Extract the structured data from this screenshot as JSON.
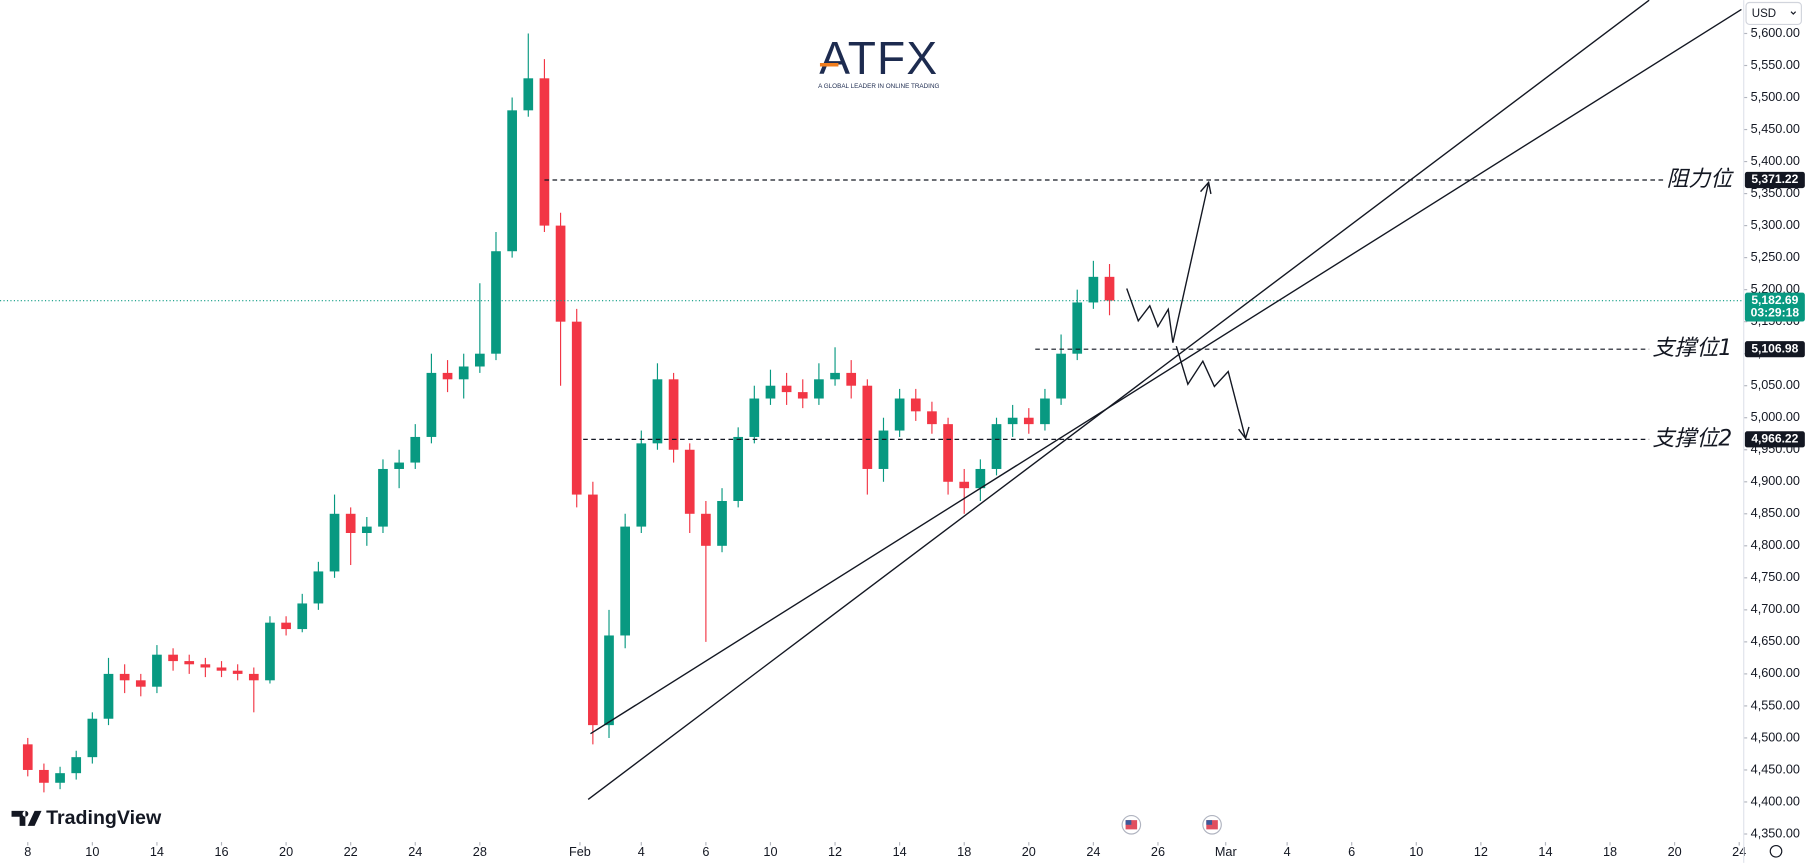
{
  "chart_data": {
    "type": "candlestick",
    "currency": "USD",
    "colors": {
      "up": "#089981",
      "down": "#f23645"
    },
    "x": [
      0,
      0.5,
      1,
      1.5,
      2,
      2.5,
      3,
      3.5,
      4,
      4.5,
      5,
      5.5,
      6,
      6.5,
      7,
      7.5,
      8,
      8.5,
      9,
      9.5,
      10,
      10.5,
      11,
      11.5,
      12,
      12.5,
      13,
      13.5,
      14,
      14.5,
      15,
      15.5,
      16,
      16.5,
      17,
      17.5,
      18,
      18.5,
      19,
      19.5,
      20,
      20.5,
      21,
      21.5,
      22,
      22.5,
      23,
      23.5,
      24,
      24.5,
      25,
      25.5,
      26,
      26.5,
      27,
      27.5,
      28,
      28.5,
      29,
      29.5,
      30,
      30.5,
      31,
      31.5,
      32,
      32.5,
      33,
      33.5
    ],
    "open": [
      4490,
      4450,
      4430,
      4445,
      4470,
      4530,
      4600,
      4590,
      4580,
      4630,
      4620,
      4615,
      4610,
      4605,
      4600,
      4590,
      4680,
      4670,
      4710,
      4760,
      4850,
      4820,
      4830,
      4920,
      4930,
      4970,
      5070,
      5060,
      5080,
      5100,
      5260,
      5480,
      5530,
      5300,
      5150,
      4880,
      4520,
      4660,
      4830,
      4960,
      5060,
      4950,
      4850,
      4800,
      4870,
      4970,
      5030,
      5050,
      5040,
      5030,
      5060,
      5070,
      5050,
      4920,
      4980,
      5030,
      5010,
      4990,
      4900,
      4890,
      4920,
      4990,
      5000,
      4990,
      5030,
      5100,
      5180,
      5220
    ],
    "high": [
      4500,
      4460,
      4455,
      4480,
      4540,
      4625,
      4615,
      4600,
      4645,
      4640,
      4630,
      4625,
      4620,
      4615,
      4610,
      4690,
      4690,
      4725,
      4775,
      4880,
      4860,
      4845,
      4935,
      4950,
      4990,
      5100,
      5090,
      5100,
      5210,
      5290,
      5500,
      5600,
      5560,
      5320,
      5170,
      4900,
      4700,
      4850,
      4980,
      5085,
      5070,
      4960,
      4870,
      4890,
      4985,
      5050,
      5075,
      5070,
      5060,
      5085,
      5110,
      5090,
      5060,
      5000,
      5045,
      5045,
      5025,
      5000,
      4920,
      4935,
      5000,
      5020,
      5015,
      5045,
      5130,
      5200,
      5245,
      5240
    ],
    "low": [
      4440,
      4415,
      4420,
      4435,
      4460,
      4520,
      4570,
      4565,
      4570,
      4605,
      4600,
      4595,
      4595,
      4590,
      4540,
      4585,
      4660,
      4665,
      4700,
      4750,
      4770,
      4800,
      4820,
      4890,
      4920,
      4960,
      5040,
      5030,
      5070,
      5090,
      5250,
      5470,
      5290,
      5050,
      4860,
      4490,
      4500,
      4640,
      4820,
      4950,
      4930,
      4820,
      4650,
      4790,
      4860,
      4960,
      5020,
      5020,
      5015,
      5020,
      5050,
      5030,
      4880,
      4900,
      4970,
      4995,
      4975,
      4880,
      4850,
      4870,
      4910,
      4970,
      4975,
      4980,
      5020,
      5090,
      5170,
      5160
    ],
    "close": [
      4450,
      4430,
      4445,
      4470,
      4530,
      4600,
      4590,
      4580,
      4630,
      4620,
      4615,
      4610,
      4605,
      4600,
      4590,
      4680,
      4670,
      4710,
      4760,
      4850,
      4820,
      4830,
      4920,
      4930,
      4970,
      5070,
      5060,
      5080,
      5100,
      5260,
      5480,
      5530,
      5300,
      5150,
      4880,
      4520,
      4660,
      4830,
      4960,
      5060,
      4950,
      4850,
      4800,
      4870,
      4970,
      5030,
      5050,
      5040,
      5030,
      5060,
      5070,
      5050,
      4920,
      4980,
      5030,
      5010,
      4990,
      4900,
      4890,
      4920,
      4990,
      5000,
      4990,
      5030,
      5100,
      5180,
      5220,
      5183
    ],
    "xlim": [
      -0.86,
      53.14
    ],
    "xticks": [
      {
        "value": 0,
        "label": "8"
      },
      {
        "value": 2,
        "label": "10"
      },
      {
        "value": 4,
        "label": "14"
      },
      {
        "value": 6,
        "label": "16"
      },
      {
        "value": 8,
        "label": "20"
      },
      {
        "value": 10,
        "label": "22"
      },
      {
        "value": 12,
        "label": "24"
      },
      {
        "value": 14,
        "label": "28"
      },
      {
        "value": 17.1,
        "label": "Feb"
      },
      {
        "value": 19,
        "label": "4"
      },
      {
        "value": 21,
        "label": "6"
      },
      {
        "value": 23,
        "label": "10"
      },
      {
        "value": 25,
        "label": "12"
      },
      {
        "value": 27,
        "label": "14"
      },
      {
        "value": 29,
        "label": "18"
      },
      {
        "value": 31,
        "label": "20"
      },
      {
        "value": 33,
        "label": "24"
      },
      {
        "value": 35,
        "label": "26"
      },
      {
        "value": 37.1,
        "label": "Mar"
      },
      {
        "value": 39,
        "label": "4"
      },
      {
        "value": 41,
        "label": "6"
      },
      {
        "value": 43,
        "label": "10"
      },
      {
        "value": 45,
        "label": "12"
      },
      {
        "value": 47,
        "label": "14"
      },
      {
        "value": 49,
        "label": "18"
      },
      {
        "value": 51,
        "label": "20"
      },
      {
        "value": 53,
        "label": "24"
      }
    ],
    "ylim": [
      4305,
      5652
    ],
    "yticks": [
      {
        "value": 4350,
        "label": "4,350.00"
      },
      {
        "value": 4400,
        "label": "4,400.00"
      },
      {
        "value": 4450,
        "label": "4,450.00"
      },
      {
        "value": 4500,
        "label": "4,500.00"
      },
      {
        "value": 4550,
        "label": "4,550.00"
      },
      {
        "value": 4600,
        "label": "4,600.00"
      },
      {
        "value": 4650,
        "label": "4,650.00"
      },
      {
        "value": 4700,
        "label": "4,700.00"
      },
      {
        "value": 4750,
        "label": "4,750.00"
      },
      {
        "value": 4800,
        "label": "4,800.00"
      },
      {
        "value": 4850,
        "label": "4,850.00"
      },
      {
        "value": 4900,
        "label": "4,900.00"
      },
      {
        "value": 4950,
        "label": "4,950.00"
      },
      {
        "value": 5000,
        "label": "5,000.00"
      },
      {
        "value": 5050,
        "label": "5,050.00"
      },
      {
        "value": 5100,
        "label": "5,100.00"
      },
      {
        "value": 5150,
        "label": "5,150.00"
      },
      {
        "value": 5200,
        "label": "5,200.00"
      },
      {
        "value": 5250,
        "label": "5,250.00"
      },
      {
        "value": 5300,
        "label": "5,300.00"
      },
      {
        "value": 5350,
        "label": "5,350.00"
      },
      {
        "value": 5400,
        "label": "5,400.00"
      },
      {
        "value": 5450,
        "label": "5,450.00"
      },
      {
        "value": 5500,
        "label": "5,500.00"
      },
      {
        "value": 5550,
        "label": "5,550.00"
      },
      {
        "value": 5600,
        "label": "5,600.00"
      }
    ],
    "levels": [
      {
        "name": "阻力位",
        "value": 5371.22,
        "label": "5,371.22",
        "start": 16
      },
      {
        "name": "支撑位1",
        "value": 5106.98,
        "label": "5,106.98",
        "start": 31.2
      },
      {
        "name": "支撑位2",
        "value": 4966.22,
        "label": "4,966.22",
        "start": 17.2
      }
    ],
    "last_price": {
      "value": 5182.69,
      "label": "5,182.69",
      "countdown": "03:29:18",
      "color": "#089981"
    },
    "brand": {
      "name": "ATFX",
      "tagline": "A GLOBAL LEADER IN ONLINE TRADING"
    },
    "platform": "TradingView"
  }
}
